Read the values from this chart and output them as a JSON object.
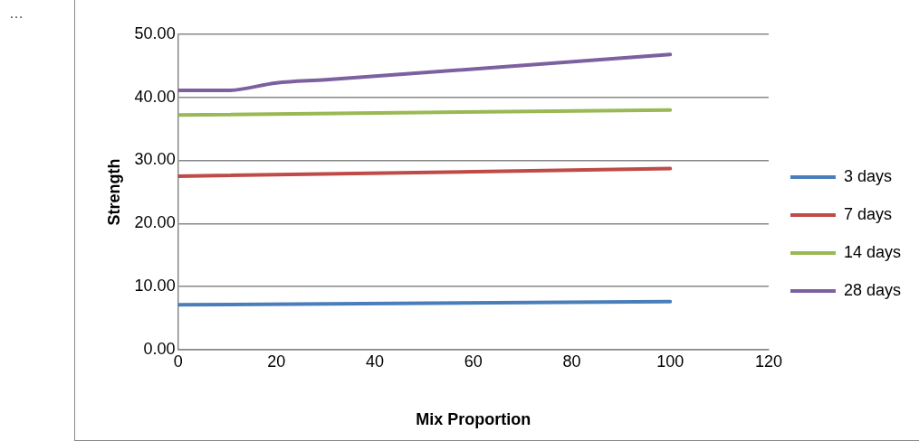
{
  "chart_data": {
    "type": "line",
    "xlabel": "Mix Proportion",
    "ylabel": "Strength",
    "annotations": [
      "…"
    ],
    "xlim": [
      0,
      120
    ],
    "xticks": [
      0,
      20,
      40,
      60,
      80,
      100,
      120
    ],
    "ylim": [
      0,
      50
    ],
    "yticks": [
      {
        "value": 0,
        "label": "0.00"
      },
      {
        "value": 10,
        "label": "10.00"
      },
      {
        "value": 20,
        "label": "20.00"
      },
      {
        "value": 30,
        "label": "30.00"
      },
      {
        "value": 40,
        "label": "40.00"
      },
      {
        "value": 50,
        "label": "50.00"
      }
    ],
    "grid": "y",
    "legend": "right",
    "marker": "none",
    "line_style": "solid",
    "series": [
      {
        "name": "3 days",
        "color": "#4a7ebb",
        "x": [
          0,
          100
        ],
        "values": [
          7.1,
          7.6
        ]
      },
      {
        "name": "7 days",
        "color": "#be4b48",
        "x": [
          0,
          100
        ],
        "values": [
          27.5,
          28.7
        ]
      },
      {
        "name": "14 days",
        "color": "#98b954",
        "x": [
          0,
          100
        ],
        "values": [
          37.2,
          38.0
        ]
      },
      {
        "name": "28 days",
        "color": "#7d60a0",
        "x": [
          0,
          10,
          20,
          30,
          100
        ],
        "values": [
          41.1,
          41.1,
          42.3,
          42.8,
          46.8
        ]
      }
    ]
  }
}
